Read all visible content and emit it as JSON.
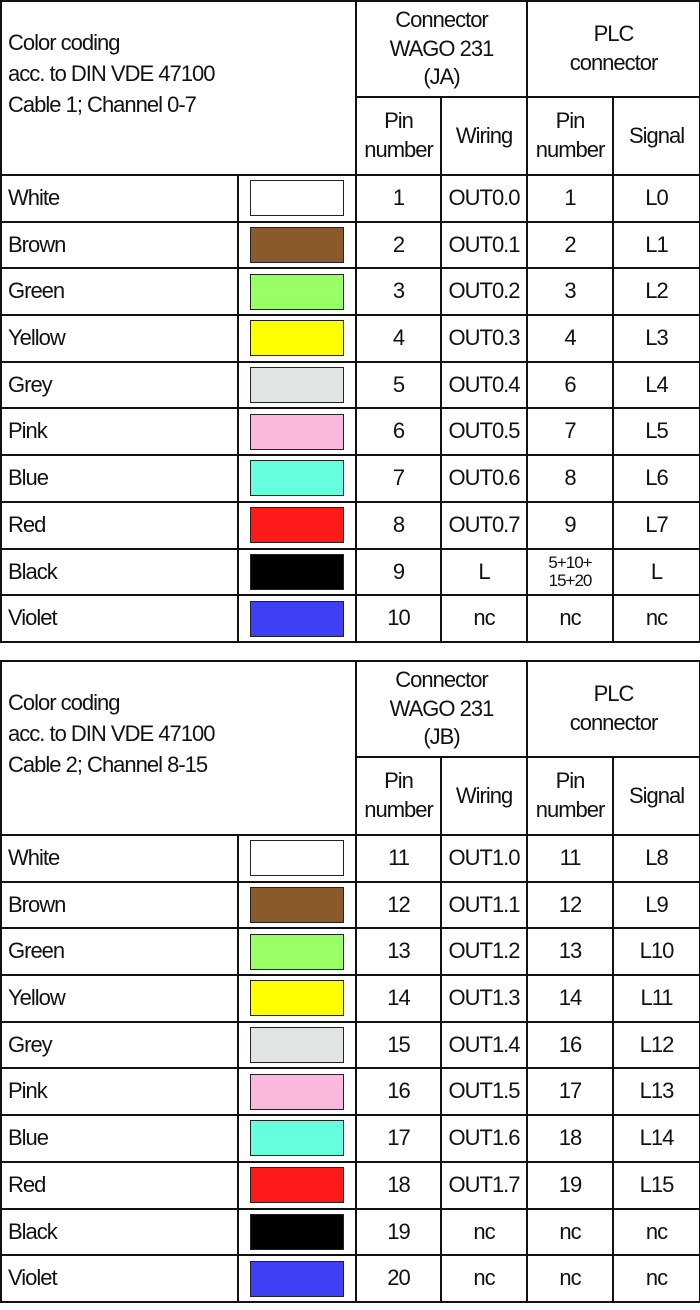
{
  "tables": [
    {
      "title": [
        "Color coding",
        "acc. to DIN VDE 47100",
        "Cable 1; Channel 0-7"
      ],
      "connector_header": "Connector WAGO 231 (JA)",
      "plc_header": "PLC connector",
      "sub_headers": [
        "Pin number",
        "Wiring",
        "Pin number",
        "Signal"
      ],
      "rows": [
        {
          "color": "White",
          "hex": "#ffffff",
          "pin": "1",
          "wiring": "OUT0.0",
          "plc_pin": "1",
          "signal": "L0"
        },
        {
          "color": "Brown",
          "hex": "#8b5a2b",
          "pin": "2",
          "wiring": "OUT0.1",
          "plc_pin": "2",
          "signal": "L1"
        },
        {
          "color": "Green",
          "hex": "#99ff66",
          "pin": "3",
          "wiring": "OUT0.2",
          "plc_pin": "3",
          "signal": "L2"
        },
        {
          "color": "Yellow",
          "hex": "#ffff00",
          "pin": "4",
          "wiring": "OUT0.3",
          "plc_pin": "4",
          "signal": "L3"
        },
        {
          "color": "Grey",
          "hex": "#e0e4e4",
          "pin": "5",
          "wiring": "OUT0.4",
          "plc_pin": "6",
          "signal": "L4"
        },
        {
          "color": "Pink",
          "hex": "#f9b8dc",
          "pin": "6",
          "wiring": "OUT0.5",
          "plc_pin": "7",
          "signal": "L5"
        },
        {
          "color": "Blue",
          "hex": "#66ffdd",
          "pin": "7",
          "wiring": "OUT0.6",
          "plc_pin": "8",
          "signal": "L6"
        },
        {
          "color": "Red",
          "hex": "#ff1a1a",
          "pin": "8",
          "wiring": "OUT0.7",
          "plc_pin": "9",
          "signal": "L7"
        },
        {
          "color": "Black",
          "hex": "#000000",
          "pin": "9",
          "wiring": "L",
          "plc_pin": "5+10+ 15+20",
          "signal": "L"
        },
        {
          "color": "Violet",
          "hex": "#3f3ff5",
          "pin": "10",
          "wiring": "nc",
          "plc_pin": "nc",
          "signal": "nc"
        }
      ]
    },
    {
      "title": [
        "Color coding",
        "acc. to DIN VDE 47100",
        "Cable 2; Channel 8-15"
      ],
      "connector_header": "Connector WAGO 231 (JB)",
      "plc_header": "PLC connector",
      "sub_headers": [
        "Pin number",
        "Wiring",
        "Pin number",
        "Signal"
      ],
      "rows": [
        {
          "color": "White",
          "hex": "#ffffff",
          "pin": "11",
          "wiring": "OUT1.0",
          "plc_pin": "11",
          "signal": "L8"
        },
        {
          "color": "Brown",
          "hex": "#8b5a2b",
          "pin": "12",
          "wiring": "OUT1.1",
          "plc_pin": "12",
          "signal": "L9"
        },
        {
          "color": "Green",
          "hex": "#99ff66",
          "pin": "13",
          "wiring": "OUT1.2",
          "plc_pin": "13",
          "signal": "L10"
        },
        {
          "color": "Yellow",
          "hex": "#ffff00",
          "pin": "14",
          "wiring": "OUT1.3",
          "plc_pin": "14",
          "signal": "L11"
        },
        {
          "color": "Grey",
          "hex": "#e0e4e4",
          "pin": "15",
          "wiring": "OUT1.4",
          "plc_pin": "16",
          "signal": "L12"
        },
        {
          "color": "Pink",
          "hex": "#f9b8dc",
          "pin": "16",
          "wiring": "OUT1.5",
          "plc_pin": "17",
          "signal": "L13"
        },
        {
          "color": "Blue",
          "hex": "#66ffdd",
          "pin": "17",
          "wiring": "OUT1.6",
          "plc_pin": "18",
          "signal": "L14"
        },
        {
          "color": "Red",
          "hex": "#ff1a1a",
          "pin": "18",
          "wiring": "OUT1.7",
          "plc_pin": "19",
          "signal": "L15"
        },
        {
          "color": "Black",
          "hex": "#000000",
          "pin": "19",
          "wiring": "nc",
          "plc_pin": "nc",
          "signal": "nc"
        },
        {
          "color": "Violet",
          "hex": "#3f3ff5",
          "pin": "20",
          "wiring": "nc",
          "plc_pin": "nc",
          "signal": "nc"
        }
      ]
    }
  ]
}
